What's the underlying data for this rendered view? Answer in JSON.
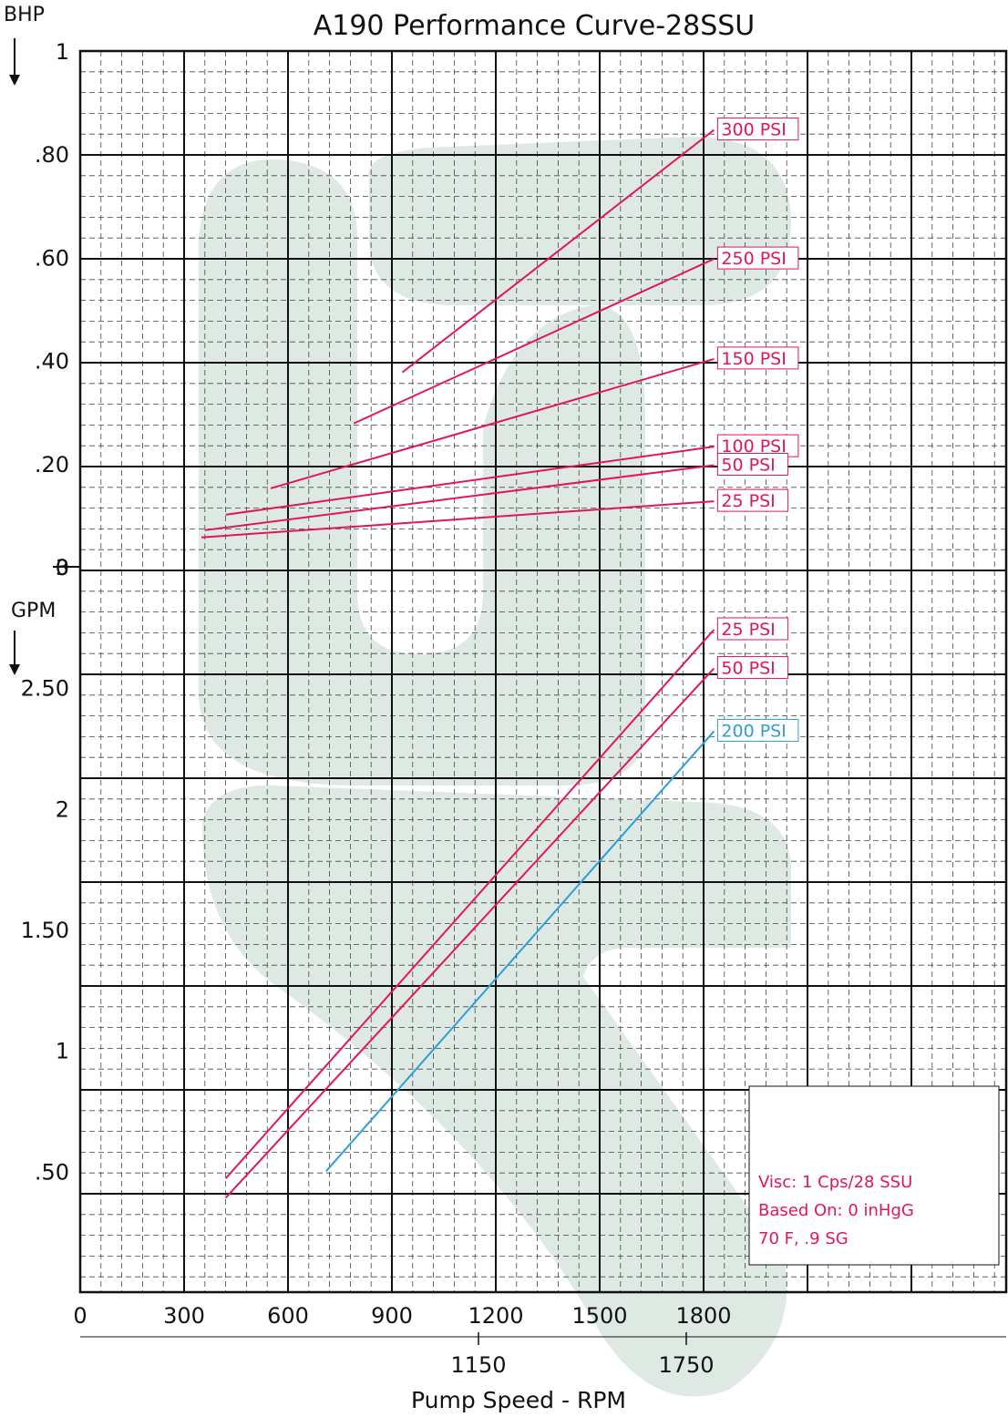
{
  "chart_data": {
    "type": "line",
    "title": "A190 Performance Curve-28SSU",
    "bhp_label": "BHP",
    "gpm_label": "GPM",
    "xlabel": "Pump Speed - RPM",
    "x_range": [
      0,
      2200
    ],
    "x_ticks_top": [
      "0",
      "300",
      "600",
      "900",
      "1200",
      "1500",
      "1800"
    ],
    "x_ticks_bottom": [
      "1150",
      "1750"
    ],
    "bhp": {
      "ylim": [
        0,
        1
      ],
      "tick_values": [
        1,
        0.8,
        0.6,
        0.4,
        0.2,
        0
      ],
      "tick_labels": [
        "1",
        ".80",
        ".60",
        ".40",
        ".20",
        "0"
      ],
      "series": [
        {
          "name": "300 PSI",
          "color": "#e3155a",
          "x": [
            930,
            1830
          ],
          "y": [
            0.377,
            0.847
          ]
        },
        {
          "name": "250 PSI",
          "color": "#e3155a",
          "x": [
            790,
            1830
          ],
          "y": [
            0.278,
            0.597
          ]
        },
        {
          "name": "150 PSI",
          "color": "#e3155a",
          "x": [
            550,
            1830
          ],
          "y": [
            0.152,
            0.403
          ]
        },
        {
          "name": "100 PSI",
          "color": "#e3155a",
          "x": [
            420,
            1830
          ],
          "y": [
            0.101,
            0.233
          ]
        },
        {
          "name": "50 PSI",
          "color": "#e3155a",
          "x": [
            360,
            1830
          ],
          "y": [
            0.071,
            0.197
          ]
        },
        {
          "name": "25 PSI",
          "color": "#e3155a",
          "x": [
            350,
            1830
          ],
          "y": [
            0.057,
            0.127
          ]
        }
      ]
    },
    "gpm": {
      "ylim": [
        0,
        3
      ],
      "tick_values": [
        3,
        2.5,
        2,
        1.5,
        1,
        0.5
      ],
      "tick_labels": [
        "3",
        "2.50",
        "2",
        "1.50",
        "1",
        ".50"
      ],
      "series": [
        {
          "name": "25 PSI",
          "color": "#e3155a",
          "x": [
            420,
            1830
          ],
          "y": [
            0.47,
            2.74
          ]
        },
        {
          "name": "50 PSI",
          "color": "#e3155a",
          "x": [
            420,
            1830
          ],
          "y": [
            0.39,
            2.58
          ]
        },
        {
          "name": "200 PSI",
          "color": "#2a9fd8",
          "x": [
            710,
            1830
          ],
          "y": [
            0.5,
            2.32
          ]
        }
      ]
    },
    "grid": true,
    "notes": [
      "Visc: 1 Cps/28 SSU",
      "Based On: 0 inHgG",
      "70 F, .9 SG"
    ]
  }
}
